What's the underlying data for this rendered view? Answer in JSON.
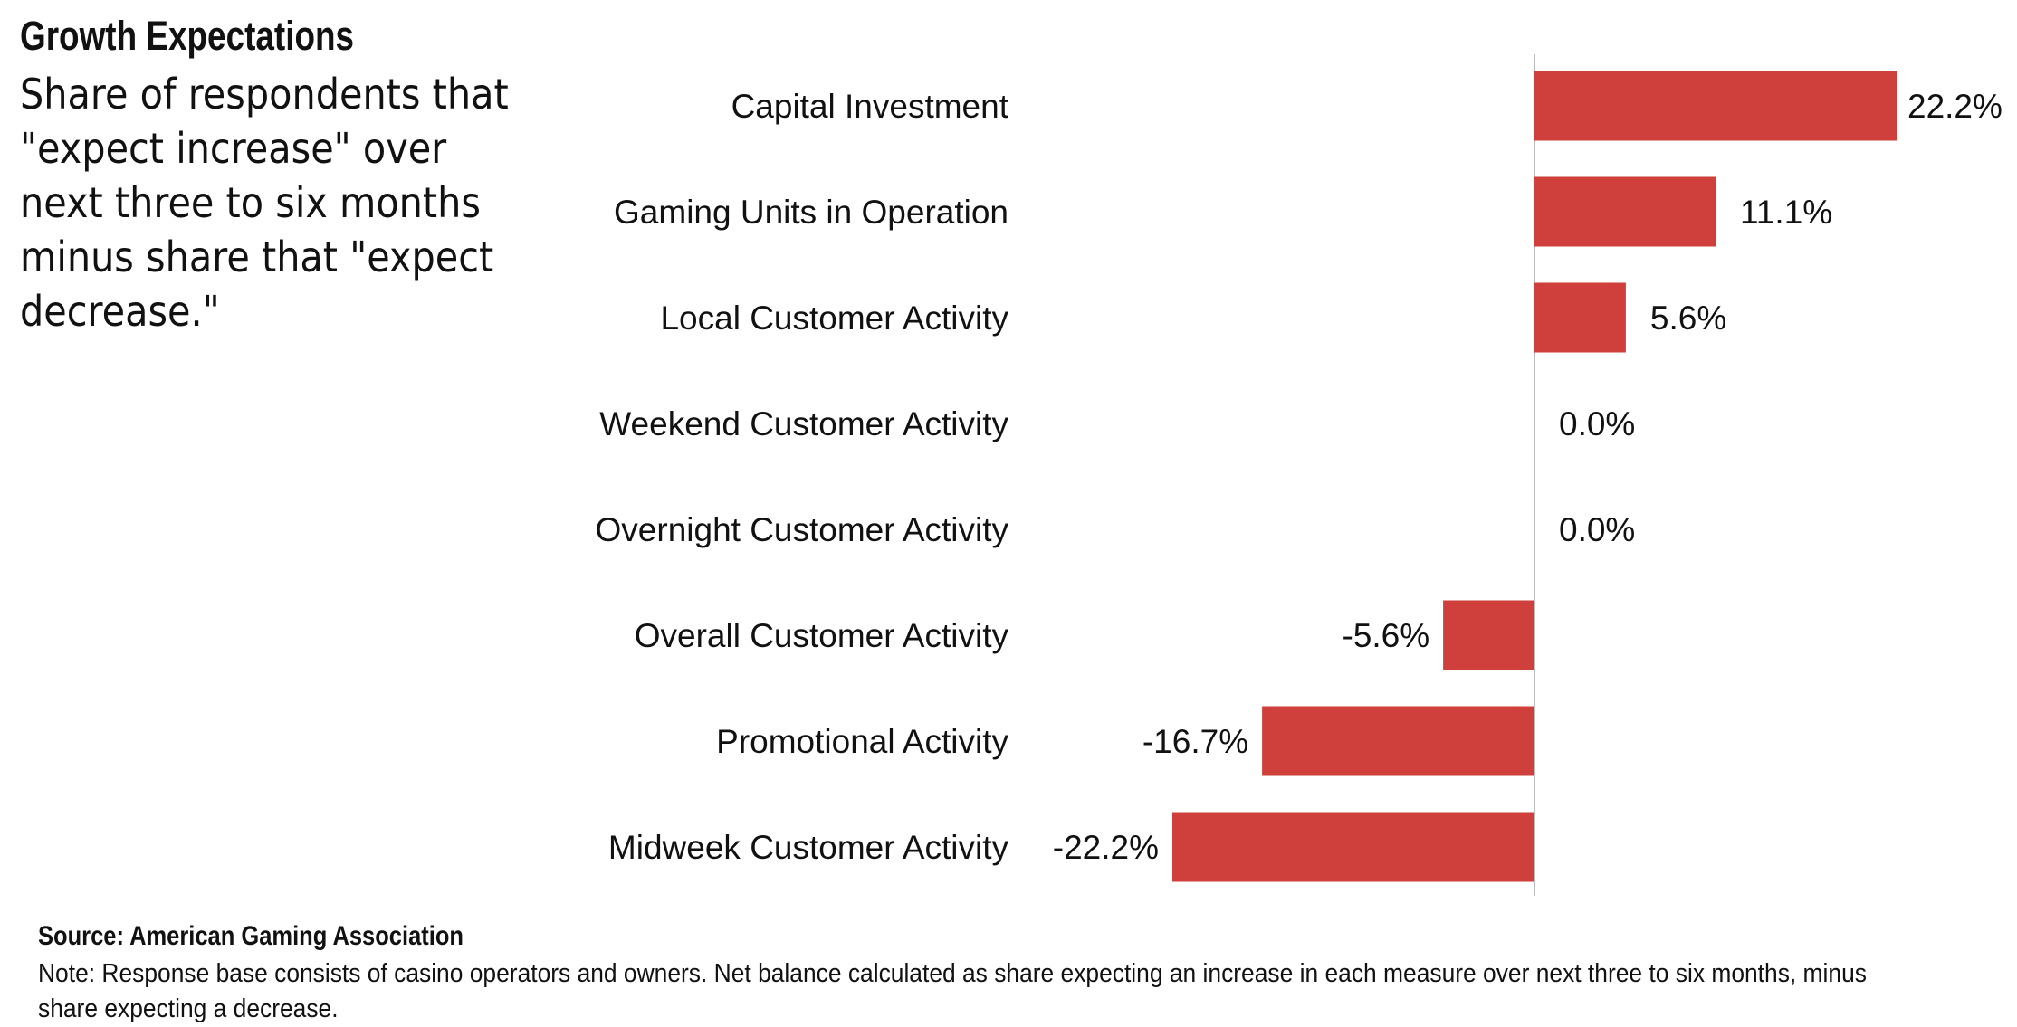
{
  "header": {
    "title": "Growth Expectations",
    "subtitle": "Share of respondents that \"expect increase\" over next three to six months minus share that \"expect decrease.\""
  },
  "footer": {
    "source": "Source: American Gaming Association",
    "note": "Note: Response base consists of casino operators and owners. Net balance calculated as share expecting an increase in each measure over next three to six months, minus share expecting a decrease."
  },
  "colors": {
    "bar": "#cf3f3c",
    "axis": "#bdbdbd",
    "text": "#111111"
  },
  "chart_data": {
    "type": "bar",
    "orientation": "horizontal",
    "title": "Growth Expectations",
    "categories": [
      "Capital Investment",
      "Gaming Units in Operation",
      "Local Customer Activity",
      "Weekend Customer Activity",
      "Overnight Customer Activity",
      "Overall Customer Activity",
      "Promotional Activity",
      "Midweek Customer Activity"
    ],
    "values": [
      22.2,
      11.1,
      5.6,
      0.0,
      0.0,
      -5.6,
      -16.7,
      -22.2
    ],
    "data_labels": [
      "22.2%",
      "11.1%",
      "5.6%",
      "0.0%",
      "0.0%",
      "-5.6%",
      "-16.7%",
      "-22.2%"
    ],
    "xlim": [
      -22.2,
      22.2
    ],
    "grid": false,
    "legend": "none"
  }
}
